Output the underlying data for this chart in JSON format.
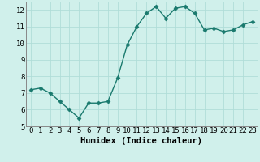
{
  "x": [
    0,
    1,
    2,
    3,
    4,
    5,
    6,
    7,
    8,
    9,
    10,
    11,
    12,
    13,
    14,
    15,
    16,
    17,
    18,
    19,
    20,
    21,
    22,
    23
  ],
  "y": [
    7.2,
    7.3,
    7.0,
    6.5,
    6.0,
    5.5,
    6.4,
    6.4,
    6.5,
    7.9,
    9.9,
    11.0,
    11.8,
    12.2,
    11.5,
    12.1,
    12.2,
    11.8,
    10.8,
    10.9,
    10.7,
    10.8,
    11.1,
    11.3
  ],
  "line_color": "#1a7a6e",
  "marker": "D",
  "marker_size": 2.5,
  "bg_color": "#d0f0eb",
  "grid_color": "#b0ddd8",
  "xlabel": "Humidex (Indice chaleur)",
  "ylim": [
    5,
    12.5
  ],
  "xlim": [
    -0.5,
    23.5
  ],
  "yticks": [
    5,
    6,
    7,
    8,
    9,
    10,
    11,
    12
  ],
  "xticks": [
    0,
    1,
    2,
    3,
    4,
    5,
    6,
    7,
    8,
    9,
    10,
    11,
    12,
    13,
    14,
    15,
    16,
    17,
    18,
    19,
    20,
    21,
    22,
    23
  ],
  "tick_fontsize": 6.5,
  "xlabel_fontsize": 7.5,
  "linewidth": 1.0
}
